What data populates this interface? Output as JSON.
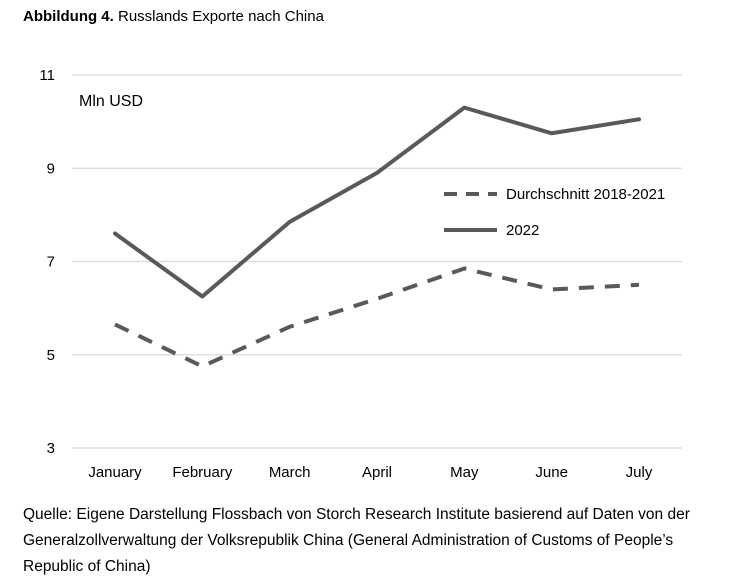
{
  "title": {
    "bold": "Abbildung 4.",
    "text": "Russlands Exporte nach China"
  },
  "source": "Quelle: Eigene Darstellung Flossbach von Storch Research Institute basierend auf Daten von der Generalzollverwaltung der Volksrepublik China (General Administration of Customs of People’s Republic of China)",
  "chart_data": {
    "type": "line",
    "title": "Russlands Exporte nach China",
    "ylabel": "Mln USD",
    "xlabel": "",
    "categories": [
      "January",
      "February",
      "March",
      "April",
      "May",
      "June",
      "July"
    ],
    "ylim": [
      3,
      11
    ],
    "yticks": [
      3,
      5,
      7,
      9,
      11
    ],
    "grid": "horizontal",
    "legend_position": "right",
    "series": [
      {
        "name": "Durchschnitt 2018-2021",
        "style": "dashed",
        "color": "#595959",
        "values": [
          5.65,
          4.75,
          5.6,
          6.2,
          6.85,
          6.4,
          6.5
        ]
      },
      {
        "name": "2022",
        "style": "solid",
        "color": "#595959",
        "values": [
          7.6,
          6.25,
          7.85,
          8.9,
          10.3,
          9.75,
          10.05
        ]
      }
    ]
  }
}
